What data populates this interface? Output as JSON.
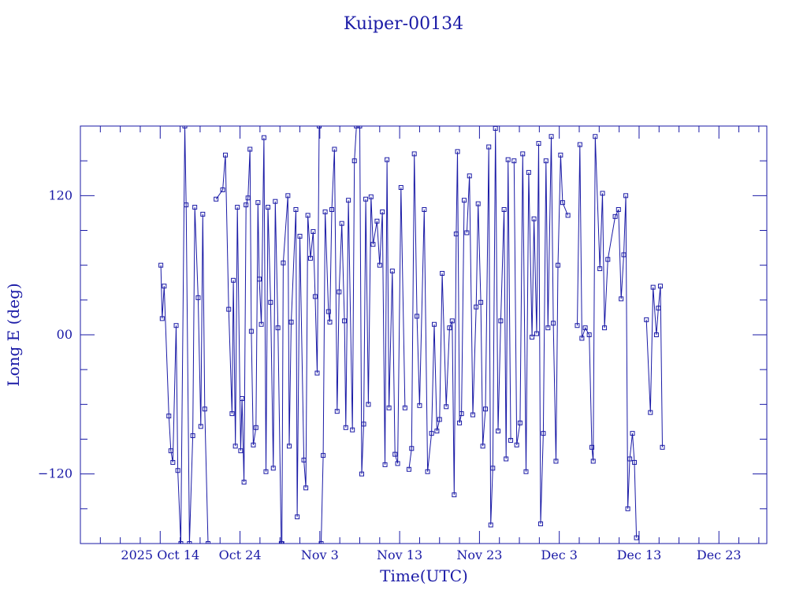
{
  "chart_data": {
    "type": "line",
    "title": "Kuiper-00134",
    "xlabel": "Time(UTC)",
    "ylabel": "Long E (deg)",
    "x_domain": [
      "2025-10-04",
      "2025-12-29"
    ],
    "ylim": [
      -180,
      180
    ],
    "y_ticks": [
      {
        "value": -120,
        "label": "−120"
      },
      {
        "value": 0,
        "label": "00"
      },
      {
        "value": 120,
        "label": "120"
      }
    ],
    "y_minor_step": 30,
    "x_ticks": [
      {
        "date": "2025-10-14",
        "label": "2025 Oct 14"
      },
      {
        "date": "2025-10-24",
        "label": "Oct 24"
      },
      {
        "date": "2025-11-03",
        "label": "Nov  3"
      },
      {
        "date": "2025-11-13",
        "label": "Nov 13"
      },
      {
        "date": "2025-11-23",
        "label": "Nov 23"
      },
      {
        "date": "2025-12-03",
        "label": "Dec  3"
      },
      {
        "date": "2025-12-13",
        "label": "Dec 13"
      },
      {
        "date": "2025-12-23",
        "label": "Dec 23"
      }
    ],
    "grid": false,
    "line_color": "#1a1aa6",
    "marker": "square",
    "series": [
      {
        "points": [
          [
            "2025-10-14T02:00",
            60
          ],
          [
            "2025-10-14T06:00",
            14
          ],
          [
            "2025-10-14T12:00",
            42
          ],
          [
            "2025-10-15T02:00",
            -70
          ],
          [
            "2025-10-15T08:00",
            -100
          ],
          [
            "2025-10-15T14:00",
            -110
          ],
          [
            "2025-10-16T00:00",
            8
          ],
          [
            "2025-10-16T05:00",
            -117
          ],
          [
            "2025-10-16T14:00",
            -180
          ],
          [
            "2025-10-17T02:00",
            180
          ],
          [
            "2025-10-17T06:00",
            112
          ],
          [
            "2025-10-17T16:00",
            -180
          ],
          [
            "2025-10-18T02:00",
            -87
          ],
          [
            "2025-10-18T08:00",
            110
          ],
          [
            "2025-10-18T18:00",
            32
          ],
          [
            "2025-10-19T02:00",
            -79
          ],
          [
            "2025-10-19T08:00",
            104
          ],
          [
            "2025-10-19T14:00",
            -64
          ],
          [
            "2025-10-20T00:00",
            -180
          ]
        ]
      },
      {
        "points": [
          [
            "2025-10-21T00:00",
            117
          ],
          [
            "2025-10-21T20:00",
            125
          ],
          [
            "2025-10-22T04:00",
            155
          ],
          [
            "2025-10-22T14:00",
            22
          ],
          [
            "2025-10-23T00:00",
            -68
          ],
          [
            "2025-10-23T04:00",
            47
          ],
          [
            "2025-10-23T10:00",
            -96
          ],
          [
            "2025-10-23T16:00",
            110
          ],
          [
            "2025-10-24T02:00",
            -100
          ],
          [
            "2025-10-24T06:00",
            -55
          ],
          [
            "2025-10-24T12:00",
            -127
          ],
          [
            "2025-10-24T18:00",
            112
          ],
          [
            "2025-10-25T00:00",
            118
          ],
          [
            "2025-10-25T06:00",
            160
          ],
          [
            "2025-10-25T10:00",
            3
          ],
          [
            "2025-10-25T16:00",
            -95
          ],
          [
            "2025-10-26T00:00",
            -80
          ],
          [
            "2025-10-26T06:00",
            114
          ],
          [
            "2025-10-26T10:00",
            48
          ],
          [
            "2025-10-26T16:00",
            9
          ],
          [
            "2025-10-27T00:00",
            170
          ],
          [
            "2025-10-27T06:00",
            -118
          ],
          [
            "2025-10-27T12:00",
            110
          ],
          [
            "2025-10-27T20:00",
            28
          ],
          [
            "2025-10-28T04:00",
            -115
          ],
          [
            "2025-10-28T10:00",
            115
          ],
          [
            "2025-10-28T18:00",
            6
          ],
          [
            "2025-10-29T04:00",
            -180
          ]
        ]
      },
      {
        "points": [
          [
            "2025-10-29T06:00",
            -180
          ],
          [
            "2025-10-29T10:00",
            62
          ],
          [
            "2025-10-30T00:00",
            120
          ],
          [
            "2025-10-30T04:00",
            -96
          ],
          [
            "2025-10-30T10:00",
            11
          ],
          [
            "2025-10-31T00:00",
            108
          ],
          [
            "2025-10-31T04:00",
            -157
          ],
          [
            "2025-10-31T12:00",
            85
          ],
          [
            "2025-11-01T00:00",
            -108
          ],
          [
            "2025-11-01T06:00",
            -132
          ],
          [
            "2025-11-01T12:00",
            103
          ],
          [
            "2025-11-01T20:00",
            66
          ],
          [
            "2025-11-02T04:00",
            89
          ],
          [
            "2025-11-02T10:00",
            33
          ],
          [
            "2025-11-02T16:00",
            -33
          ],
          [
            "2025-11-02T22:00",
            180
          ]
        ]
      },
      {
        "points": [
          [
            "2025-11-03T04:00",
            -180
          ],
          [
            "2025-11-03T10:00",
            -104
          ],
          [
            "2025-11-03T16:00",
            106
          ],
          [
            "2025-11-04T02:00",
            20
          ],
          [
            "2025-11-04T06:00",
            11
          ],
          [
            "2025-11-04T12:00",
            108
          ],
          [
            "2025-11-04T20:00",
            160
          ],
          [
            "2025-11-05T04:00",
            -66
          ],
          [
            "2025-11-05T10:00",
            37
          ],
          [
            "2025-11-05T18:00",
            96
          ],
          [
            "2025-11-06T02:00",
            12
          ],
          [
            "2025-11-06T06:00",
            -80
          ],
          [
            "2025-11-06T14:00",
            116
          ],
          [
            "2025-11-07T02:00",
            -82
          ],
          [
            "2025-11-07T08:00",
            150
          ],
          [
            "2025-11-07T14:00",
            180
          ]
        ]
      },
      {
        "points": [
          [
            "2025-11-08T00:00",
            180
          ],
          [
            "2025-11-08T06:00",
            -120
          ],
          [
            "2025-11-08T12:00",
            -77
          ],
          [
            "2025-11-08T18:00",
            117
          ],
          [
            "2025-11-09T02:00",
            -60
          ],
          [
            "2025-11-09T10:00",
            119
          ],
          [
            "2025-11-09T16:00",
            78
          ],
          [
            "2025-11-10T04:00",
            98
          ],
          [
            "2025-11-10T12:00",
            60
          ],
          [
            "2025-11-10T20:00",
            106
          ],
          [
            "2025-11-11T04:00",
            -112
          ],
          [
            "2025-11-11T10:00",
            151
          ],
          [
            "2025-11-11T16:00",
            -63
          ],
          [
            "2025-11-12T02:00",
            55
          ],
          [
            "2025-11-12T10:00",
            -103
          ],
          [
            "2025-11-12T18:00",
            -111
          ],
          [
            "2025-11-13T04:00",
            127
          ],
          [
            "2025-11-13T16:00",
            -63
          ]
        ]
      },
      {
        "points": [
          [
            "2025-11-14T04:00",
            -116
          ],
          [
            "2025-11-14T12:00",
            -98
          ],
          [
            "2025-11-14T20:00",
            156
          ],
          [
            "2025-11-15T04:00",
            16
          ],
          [
            "2025-11-15T12:00",
            -61
          ],
          [
            "2025-11-16T02:00",
            108
          ],
          [
            "2025-11-16T12:00",
            -118
          ],
          [
            "2025-11-17T00:00",
            -85
          ],
          [
            "2025-11-17T08:00",
            9
          ],
          [
            "2025-11-17T16:00",
            -83
          ],
          [
            "2025-11-18T00:00",
            -73
          ],
          [
            "2025-11-18T08:00",
            53
          ],
          [
            "2025-11-18T20:00",
            -62
          ],
          [
            "2025-11-19T06:00",
            6
          ],
          [
            "2025-11-19T14:00",
            12
          ],
          [
            "2025-11-19T20:00",
            -138
          ],
          [
            "2025-11-20T02:00",
            87
          ],
          [
            "2025-11-20T06:00",
            158
          ],
          [
            "2025-11-20T12:00",
            -76
          ],
          [
            "2025-11-20T18:00",
            -68
          ],
          [
            "2025-11-21T02:00",
            116
          ]
        ]
      },
      {
        "points": [
          [
            "2025-11-21T10:00",
            88
          ],
          [
            "2025-11-21T18:00",
            137
          ],
          [
            "2025-11-22T04:00",
            -69
          ],
          [
            "2025-11-22T14:00",
            24
          ],
          [
            "2025-11-22T20:00",
            113
          ],
          [
            "2025-11-23T04:00",
            28
          ],
          [
            "2025-11-23T10:00",
            -96
          ],
          [
            "2025-11-23T18:00",
            -64
          ],
          [
            "2025-11-24T04:00",
            162
          ],
          [
            "2025-11-24T10:00",
            -164
          ],
          [
            "2025-11-24T16:00",
            -115
          ],
          [
            "2025-11-25T00:00",
            178
          ],
          [
            "2025-11-25T08:00",
            -83
          ],
          [
            "2025-11-25T16:00",
            12
          ],
          [
            "2025-11-26T02:00",
            108
          ],
          [
            "2025-11-26T08:00",
            -107
          ],
          [
            "2025-11-26T14:00",
            151
          ],
          [
            "2025-11-26T22:00",
            -91
          ]
        ]
      },
      {
        "points": [
          [
            "2025-11-27T08:00",
            150
          ],
          [
            "2025-11-27T16:00",
            -95
          ],
          [
            "2025-11-28T02:00",
            -76
          ],
          [
            "2025-11-28T10:00",
            156
          ],
          [
            "2025-11-28T20:00",
            -118
          ],
          [
            "2025-11-29T04:00",
            140
          ],
          [
            "2025-11-29T14:00",
            -2
          ],
          [
            "2025-11-29T20:00",
            100
          ],
          [
            "2025-11-30T04:00",
            1
          ],
          [
            "2025-11-30T10:00",
            165
          ],
          [
            "2025-11-30T16:00",
            -163
          ],
          [
            "2025-12-01T00:00",
            -85
          ],
          [
            "2025-12-01T08:00",
            150
          ],
          [
            "2025-12-01T14:00",
            6
          ],
          [
            "2025-12-02T00:00",
            171
          ],
          [
            "2025-12-02T06:00",
            10
          ],
          [
            "2025-12-02T14:00",
            -109
          ],
          [
            "2025-12-02T20:00",
            60
          ],
          [
            "2025-12-03T04:00",
            155
          ],
          [
            "2025-12-03T10:00",
            114
          ],
          [
            "2025-12-04T02:00",
            103
          ]
        ]
      },
      {
        "points": [
          [
            "2025-12-05T06:00",
            8
          ],
          [
            "2025-12-05T14:00",
            164
          ],
          [
            "2025-12-05T20:00",
            -3
          ],
          [
            "2025-12-06T06:00",
            6
          ],
          [
            "2025-12-06T18:00",
            0
          ],
          [
            "2025-12-07T02:00",
            -97
          ],
          [
            "2025-12-07T06:00",
            -109
          ],
          [
            "2025-12-07T12:00",
            171
          ],
          [
            "2025-12-08T02:00",
            57
          ],
          [
            "2025-12-08T10:00",
            122
          ],
          [
            "2025-12-08T16:00",
            6
          ],
          [
            "2025-12-09T02:00",
            65
          ],
          [
            "2025-12-10T00:00",
            102
          ],
          [
            "2025-12-10T10:00",
            108
          ],
          [
            "2025-12-10T18:00",
            31
          ],
          [
            "2025-12-11T02:00",
            69
          ],
          [
            "2025-12-11T08:00",
            120
          ],
          [
            "2025-12-11T14:00",
            -150
          ],
          [
            "2025-12-11T20:00",
            -107
          ],
          [
            "2025-12-12T04:00",
            -85
          ],
          [
            "2025-12-12T10:00",
            -110
          ],
          [
            "2025-12-12T16:00",
            -175
          ]
        ]
      },
      {
        "points": [
          [
            "2025-12-13T22:00",
            13
          ],
          [
            "2025-12-14T10:00",
            -67
          ],
          [
            "2025-12-14T18:00",
            41
          ],
          [
            "2025-12-15T04:00",
            0
          ],
          [
            "2025-12-15T10:00",
            23
          ],
          [
            "2025-12-15T16:00",
            42
          ],
          [
            "2025-12-15T22:00",
            -97
          ]
        ]
      }
    ]
  }
}
